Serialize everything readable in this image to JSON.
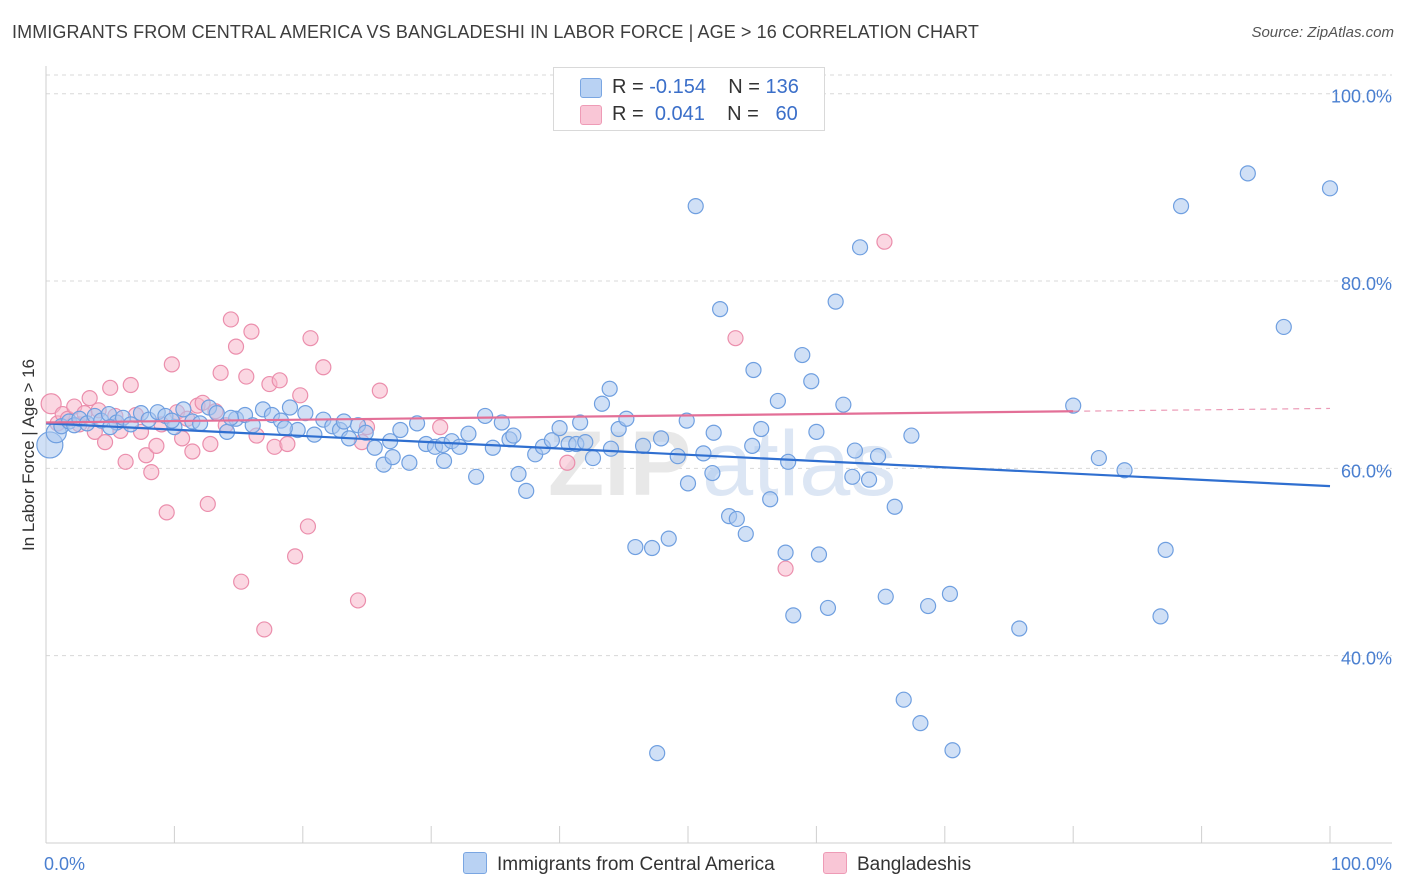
{
  "header": {
    "title": "IMMIGRANTS FROM CENTRAL AMERICA VS BANGLADESHI IN LABOR FORCE | AGE > 16 CORRELATION CHART",
    "source": "Source: ZipAtlas.com"
  },
  "legend": {
    "rows": [
      {
        "r_label": "R = ",
        "r_value": "-0.154",
        "n_label": "N = ",
        "n_value": "136"
      },
      {
        "r_label": "R = ",
        "r_value": "0.041",
        "n_label": "N = ",
        "n_value": "60"
      }
    ]
  },
  "watermark": {
    "zip": "ZIP",
    "atlas": "atlas"
  },
  "colors": {
    "blue_fill": "#a9c6ef",
    "blue_stroke": "#6f9fe0",
    "blue_line": "#2f6fd0",
    "pink_fill": "#f7b7cb",
    "pink_stroke": "#eb8eac",
    "pink_line": "#e36f97",
    "tick_text": "#4a7fd0",
    "grid": "#d8d8d8"
  },
  "chart_data": {
    "type": "scatter",
    "title": "IMMIGRANTS FROM CENTRAL AMERICA VS BANGLADESHI IN LABOR FORCE | AGE > 16 CORRELATION CHART",
    "xlabel": "",
    "ylabel": "In Labor Force | Age > 16",
    "xlim": [
      0,
      100
    ],
    "ylim": [
      20,
      102
    ],
    "x_tick_labels": [
      "0.0%",
      "100.0%"
    ],
    "y_ticks": [
      40,
      60,
      80,
      100
    ],
    "y_tick_labels": [
      "40.0%",
      "60.0%",
      "80.0%",
      "100.0%"
    ],
    "grid": true,
    "legend_position": "top-center",
    "series": [
      {
        "name": "Immigrants from Central America",
        "r": -0.154,
        "n": 136,
        "trend": {
          "x": [
            0,
            100
          ],
          "y": [
            64.8,
            58.1
          ],
          "dashed_from": null
        },
        "points": [
          [
            0.3,
            62.5
          ],
          [
            0.8,
            63.8
          ],
          [
            1.2,
            64.5
          ],
          [
            1.8,
            65.0
          ],
          [
            2.2,
            64.6
          ],
          [
            2.6,
            65.3
          ],
          [
            3.2,
            64.8
          ],
          [
            3.8,
            65.6
          ],
          [
            4.3,
            65.1
          ],
          [
            4.9,
            65.8
          ],
          [
            5.5,
            64.9
          ],
          [
            6.0,
            65.4
          ],
          [
            6.6,
            64.7
          ],
          [
            7.4,
            65.9
          ],
          [
            8.0,
            65.2
          ],
          [
            8.7,
            66.0
          ],
          [
            9.3,
            65.6
          ],
          [
            10.0,
            64.4
          ],
          [
            10.7,
            66.3
          ],
          [
            11.4,
            65.0
          ],
          [
            12.0,
            64.8
          ],
          [
            12.7,
            66.5
          ],
          [
            13.3,
            65.9
          ],
          [
            14.1,
            63.9
          ],
          [
            14.8,
            65.3
          ],
          [
            15.5,
            65.7
          ],
          [
            16.1,
            64.6
          ],
          [
            16.9,
            66.3
          ],
          [
            17.6,
            65.7
          ],
          [
            18.3,
            65.1
          ],
          [
            19.0,
            66.5
          ],
          [
            19.6,
            64.1
          ],
          [
            20.2,
            65.9
          ],
          [
            20.9,
            63.6
          ],
          [
            21.6,
            65.2
          ],
          [
            22.3,
            64.5
          ],
          [
            22.9,
            64.1
          ],
          [
            23.6,
            63.2
          ],
          [
            24.3,
            64.6
          ],
          [
            24.9,
            63.8
          ],
          [
            25.6,
            62.2
          ],
          [
            26.3,
            60.4
          ],
          [
            27.0,
            61.2
          ],
          [
            27.6,
            64.1
          ],
          [
            28.3,
            60.6
          ],
          [
            28.9,
            64.8
          ],
          [
            29.6,
            62.6
          ],
          [
            30.3,
            62.3
          ],
          [
            30.9,
            62.5
          ],
          [
            31.6,
            62.9
          ],
          [
            32.2,
            62.3
          ],
          [
            32.9,
            63.7
          ],
          [
            33.5,
            59.1
          ],
          [
            34.2,
            65.6
          ],
          [
            34.8,
            62.2
          ],
          [
            35.5,
            64.9
          ],
          [
            36.1,
            63.1
          ],
          [
            36.8,
            59.4
          ],
          [
            37.4,
            57.6
          ],
          [
            38.1,
            61.5
          ],
          [
            38.7,
            62.3
          ],
          [
            39.4,
            63.0
          ],
          [
            40.0,
            64.3
          ],
          [
            40.7,
            62.6
          ],
          [
            41.3,
            62.6
          ],
          [
            42.0,
            62.8
          ],
          [
            42.6,
            61.1
          ],
          [
            43.3,
            66.9
          ],
          [
            43.9,
            68.5
          ],
          [
            44.6,
            64.2
          ],
          [
            45.2,
            65.3
          ],
          [
            45.9,
            51.6
          ],
          [
            46.5,
            62.4
          ],
          [
            47.2,
            51.5
          ],
          [
            47.9,
            63.2
          ],
          [
            48.5,
            52.5
          ],
          [
            49.2,
            61.3
          ],
          [
            49.9,
            65.1
          ],
          [
            50.6,
            88.0
          ],
          [
            51.2,
            61.6
          ],
          [
            51.9,
            59.5
          ],
          [
            52.5,
            77.0
          ],
          [
            53.2,
            54.9
          ],
          [
            53.8,
            54.6
          ],
          [
            54.5,
            53.0
          ],
          [
            55.1,
            70.5
          ],
          [
            55.7,
            64.2
          ],
          [
            56.4,
            56.7
          ],
          [
            57.0,
            67.2
          ],
          [
            57.6,
            51.0
          ],
          [
            58.2,
            44.3
          ],
          [
            58.9,
            72.1
          ],
          [
            59.6,
            69.3
          ],
          [
            60.2,
            50.8
          ],
          [
            60.9,
            45.1
          ],
          [
            61.5,
            77.8
          ],
          [
            62.1,
            66.8
          ],
          [
            62.8,
            59.1
          ],
          [
            63.4,
            83.6
          ],
          [
            64.1,
            58.8
          ],
          [
            64.8,
            61.3
          ],
          [
            65.4,
            46.3
          ],
          [
            66.1,
            55.9
          ],
          [
            66.8,
            35.3
          ],
          [
            67.4,
            63.5
          ],
          [
            68.1,
            32.8
          ],
          [
            68.7,
            45.3
          ],
          [
            70.4,
            46.6
          ],
          [
            70.6,
            29.9
          ],
          [
            75.8,
            42.9
          ],
          [
            80.0,
            66.7
          ],
          [
            82.0,
            61.1
          ],
          [
            84.0,
            59.8
          ],
          [
            86.8,
            44.2
          ],
          [
            87.2,
            51.3
          ],
          [
            88.4,
            88.0
          ],
          [
            93.6,
            91.5
          ],
          [
            96.4,
            75.1
          ],
          [
            100.0,
            89.9
          ],
          [
            47.6,
            29.6
          ],
          [
            5.0,
            64.4
          ],
          [
            9.8,
            65.1
          ],
          [
            14.4,
            65.4
          ],
          [
            18.6,
            64.3
          ],
          [
            23.2,
            65.0
          ],
          [
            26.8,
            62.9
          ],
          [
            31.0,
            60.8
          ],
          [
            36.4,
            63.5
          ],
          [
            41.6,
            64.9
          ],
          [
            44.0,
            62.1
          ],
          [
            50.0,
            58.4
          ],
          [
            52.0,
            63.8
          ],
          [
            55.0,
            62.4
          ],
          [
            57.8,
            60.7
          ],
          [
            60.0,
            63.9
          ],
          [
            63.0,
            61.9
          ]
        ],
        "point_sizes": {
          "default": 7.5,
          "large": [
            [
              0.3,
              62.5,
              13
            ],
            [
              0.8,
              63.8,
              10
            ]
          ]
        }
      },
      {
        "name": "Bangladeshis",
        "r": 0.041,
        "n": 60,
        "trend": {
          "x": [
            0,
            100
          ],
          "y": [
            64.9,
            66.4
          ],
          "dashed_from": 80
        },
        "points": [
          [
            0.4,
            66.9
          ],
          [
            0.9,
            64.8
          ],
          [
            1.3,
            65.8
          ],
          [
            1.7,
            65.3
          ],
          [
            2.2,
            66.6
          ],
          [
            2.6,
            64.7
          ],
          [
            3.0,
            65.9
          ],
          [
            3.4,
            67.5
          ],
          [
            3.8,
            63.9
          ],
          [
            4.1,
            66.2
          ],
          [
            4.6,
            62.8
          ],
          [
            5.0,
            68.6
          ],
          [
            5.4,
            65.6
          ],
          [
            5.8,
            64.0
          ],
          [
            6.2,
            60.7
          ],
          [
            6.6,
            68.9
          ],
          [
            7.0,
            65.7
          ],
          [
            7.4,
            63.9
          ],
          [
            7.8,
            61.4
          ],
          [
            8.2,
            59.6
          ],
          [
            8.6,
            62.4
          ],
          [
            9.0,
            64.7
          ],
          [
            9.4,
            55.3
          ],
          [
            9.8,
            71.1
          ],
          [
            10.2,
            66.0
          ],
          [
            10.6,
            63.2
          ],
          [
            11.0,
            65.3
          ],
          [
            11.4,
            61.8
          ],
          [
            11.8,
            66.7
          ],
          [
            12.2,
            67.0
          ],
          [
            12.6,
            56.2
          ],
          [
            12.8,
            62.6
          ],
          [
            13.2,
            66.1
          ],
          [
            13.6,
            70.2
          ],
          [
            14.0,
            64.6
          ],
          [
            14.4,
            75.9
          ],
          [
            14.8,
            73.0
          ],
          [
            15.2,
            47.9
          ],
          [
            15.6,
            69.8
          ],
          [
            16.0,
            74.6
          ],
          [
            16.4,
            63.5
          ],
          [
            17.0,
            42.8
          ],
          [
            17.4,
            69.0
          ],
          [
            17.8,
            62.3
          ],
          [
            18.2,
            69.4
          ],
          [
            18.8,
            62.6
          ],
          [
            19.4,
            50.6
          ],
          [
            19.8,
            67.8
          ],
          [
            20.4,
            53.8
          ],
          [
            20.6,
            73.9
          ],
          [
            21.6,
            70.8
          ],
          [
            24.3,
            45.9
          ],
          [
            24.6,
            62.8
          ],
          [
            25.0,
            64.4
          ],
          [
            26.0,
            68.3
          ],
          [
            30.7,
            64.4
          ],
          [
            40.6,
            60.6
          ],
          [
            53.7,
            73.9
          ],
          [
            57.6,
            49.3
          ],
          [
            65.3,
            84.2
          ]
        ],
        "point_sizes": {
          "default": 7.5,
          "large": [
            [
              0.4,
              66.9,
              10
            ]
          ]
        }
      }
    ]
  }
}
